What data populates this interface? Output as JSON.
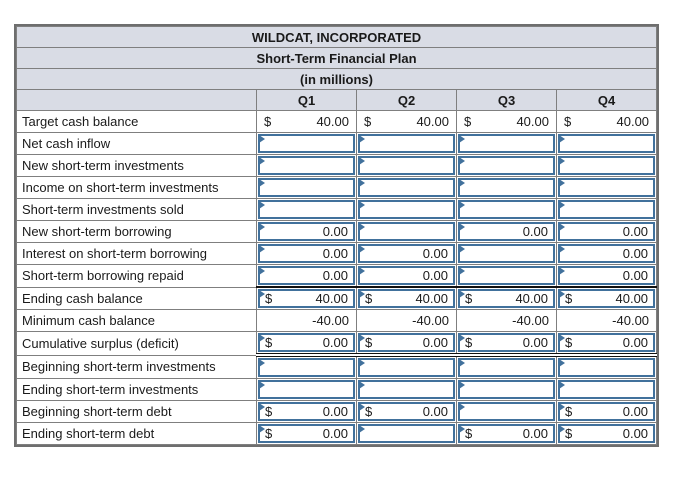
{
  "header": {
    "title": "WILDCAT, INCORPORATED",
    "subtitle": "Short-Term Financial Plan",
    "units_note": "(in millions)"
  },
  "columns": [
    "Q1",
    "Q2",
    "Q3",
    "Q4"
  ],
  "rows": [
    {
      "label": "Target cash balance",
      "cells": [
        {
          "input": false,
          "currency": "$",
          "value": "40.00"
        },
        {
          "input": false,
          "currency": "$",
          "value": "40.00"
        },
        {
          "input": false,
          "currency": "$",
          "value": "40.00"
        },
        {
          "input": false,
          "currency": "$",
          "value": "40.00"
        }
      ]
    },
    {
      "label": "Net cash inflow",
      "cells": [
        {
          "input": true
        },
        {
          "input": true
        },
        {
          "input": true
        },
        {
          "input": true
        }
      ]
    },
    {
      "label": "New short-term investments",
      "cells": [
        {
          "input": true
        },
        {
          "input": true
        },
        {
          "input": true
        },
        {
          "input": true
        }
      ]
    },
    {
      "label": "Income on short-term investments",
      "cells": [
        {
          "input": true
        },
        {
          "input": true
        },
        {
          "input": true
        },
        {
          "input": true
        }
      ]
    },
    {
      "label": "Short-term investments sold",
      "cells": [
        {
          "input": true
        },
        {
          "input": true
        },
        {
          "input": true
        },
        {
          "input": true
        }
      ]
    },
    {
      "label": "New short-term borrowing",
      "cells": [
        {
          "input": true,
          "value": "0.00"
        },
        {
          "input": true
        },
        {
          "input": true,
          "value": "0.00"
        },
        {
          "input": true,
          "value": "0.00"
        }
      ]
    },
    {
      "label": "Interest on short-term borrowing",
      "cells": [
        {
          "input": true,
          "value": "0.00"
        },
        {
          "input": true,
          "value": "0.00"
        },
        {
          "input": true
        },
        {
          "input": true,
          "value": "0.00"
        }
      ]
    },
    {
      "label": "Short-term borrowing repaid",
      "cells": [
        {
          "input": true,
          "value": "0.00"
        },
        {
          "input": true,
          "value": "0.00"
        },
        {
          "input": true
        },
        {
          "input": true,
          "value": "0.00"
        }
      ]
    },
    {
      "label": "Ending cash balance",
      "rule_top": true,
      "cells": [
        {
          "input": true,
          "currency": "$",
          "value": "40.00"
        },
        {
          "input": true,
          "currency": "$",
          "value": "40.00"
        },
        {
          "input": true,
          "currency": "$",
          "value": "40.00"
        },
        {
          "input": true,
          "currency": "$",
          "value": "40.00"
        }
      ]
    },
    {
      "label": "Minimum cash balance",
      "cells": [
        {
          "input": false,
          "value": "-40.00"
        },
        {
          "input": false,
          "value": "-40.00"
        },
        {
          "input": false,
          "value": "-40.00"
        },
        {
          "input": false,
          "value": "-40.00"
        }
      ]
    },
    {
      "label": "Cumulative surplus (deficit)",
      "rule_bottom_double": true,
      "cells": [
        {
          "input": true,
          "currency": "$",
          "value": "0.00"
        },
        {
          "input": true,
          "currency": "$",
          "value": "0.00"
        },
        {
          "input": true,
          "currency": "$",
          "value": "0.00"
        },
        {
          "input": true,
          "currency": "$",
          "value": "0.00"
        }
      ]
    },
    {
      "label": "Beginning short-term investments",
      "cells": [
        {
          "input": true
        },
        {
          "input": true
        },
        {
          "input": true
        },
        {
          "input": true
        }
      ]
    },
    {
      "label": "Ending short-term investments",
      "cells": [
        {
          "input": true
        },
        {
          "input": true
        },
        {
          "input": true
        },
        {
          "input": true
        }
      ]
    },
    {
      "label": "Beginning short-term debt",
      "cells": [
        {
          "input": true,
          "currency": "$",
          "value": "0.00"
        },
        {
          "input": true,
          "currency": "$",
          "value": "0.00"
        },
        {
          "input": true
        },
        {
          "input": true,
          "currency": "$",
          "value": "0.00"
        }
      ]
    },
    {
      "label": "Ending short-term debt",
      "cells": [
        {
          "input": true,
          "currency": "$",
          "value": "0.00"
        },
        {
          "input": true
        },
        {
          "input": true,
          "currency": "$",
          "value": "0.00"
        },
        {
          "input": true,
          "currency": "$",
          "value": "0.00"
        }
      ]
    }
  ],
  "icons": {
    "input_flag": "input-flag-icon"
  },
  "colors": {
    "header_bg": "#d9dce5",
    "grid": "#7f7f7f",
    "outer": "#6e6e6e",
    "input_blue": "#41719c",
    "rule": "#111111",
    "text": "#1a1a1a"
  }
}
